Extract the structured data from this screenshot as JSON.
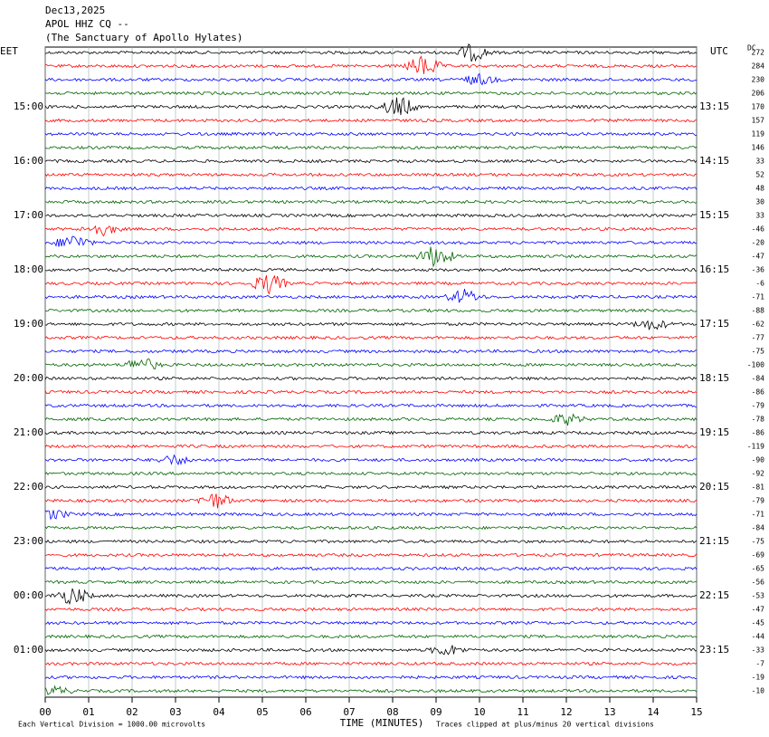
{
  "header": {
    "date": "Dec13,2025",
    "station": "APOL HHZ CQ --",
    "site": "(The Sanctuary of Apollo Hylates)"
  },
  "left_axis": {
    "title": "EET",
    "labels": [
      "15:00",
      "16:00",
      "17:00",
      "18:00",
      "19:00",
      "20:00",
      "21:00",
      "22:00",
      "23:00",
      "00:00",
      "01:00"
    ]
  },
  "right_axis": {
    "title": "UTC",
    "labels": [
      "13:15",
      "14:15",
      "15:15",
      "16:15",
      "17:15",
      "18:15",
      "19:15",
      "20:15",
      "21:15",
      "22:15",
      "23:15"
    ]
  },
  "dc": {
    "title": "DC",
    "offsets": [
      272,
      284,
      230,
      206,
      170,
      157,
      119,
      146,
      33,
      52,
      48,
      30,
      33,
      -46,
      -20,
      -47,
      -36,
      -6,
      -71,
      -88,
      -62,
      -77,
      -75,
      -100,
      -84,
      -86,
      -79,
      -78,
      -86,
      -119,
      -90,
      -92,
      -81,
      -79,
      -71,
      -84,
      -75,
      -69,
      -65,
      -56,
      -53,
      -47,
      -45,
      -44,
      -33,
      -7,
      -19,
      -10
    ]
  },
  "x_axis": {
    "title": "TIME (MINUTES)",
    "tick_labels": [
      "00",
      "01",
      "02",
      "03",
      "04",
      "05",
      "06",
      "07",
      "08",
      "09",
      "10",
      "11",
      "12",
      "13",
      "14",
      "15"
    ]
  },
  "footer": {
    "scale": "Each Vertical Division = 1000.00 microvolts",
    "clip": "Traces clipped at plus/minus 20 vertical divisions"
  },
  "trace_colors": [
    "#000000",
    "#ff0000",
    "#0000ff",
    "#006400"
  ]
}
